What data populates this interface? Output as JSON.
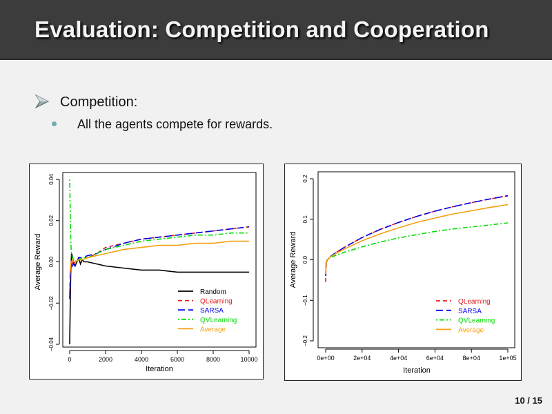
{
  "slide": {
    "title": "Evaluation: Competition and Cooperation",
    "bullet1": "Competition:",
    "bullet2": "All the agents compete for rewards.",
    "page": "10 / 15"
  },
  "chart_data": [
    {
      "type": "line",
      "xlabel": "Iteration",
      "ylabel": "Average Reward",
      "xlim": [
        0,
        10000
      ],
      "ylim": [
        -0.04,
        0.04
      ],
      "xticks": [
        "0",
        "2000",
        "4000",
        "6000",
        "8000",
        "10000"
      ],
      "yticks": [
        "−0.04",
        "−0.02",
        "0.00",
        "0.02",
        "0.04"
      ],
      "legend": "bottom-right",
      "grid": false,
      "series": [
        {
          "name": "Random",
          "color": "#000000",
          "dash": "solid",
          "x": [
            0,
            30,
            60,
            100,
            150,
            200,
            300,
            400,
            500,
            600,
            700,
            800,
            1000,
            1500,
            2000,
            3000,
            4000,
            5000,
            6000,
            7000,
            8000,
            9000,
            10000
          ],
          "y": [
            -0.04,
            -0.02,
            -0.005,
            0.004,
            0.003,
            0.0,
            -0.002,
            0.0,
            0.002,
            -0.001,
            0.001,
            0.0,
            0.0,
            -0.001,
            -0.002,
            -0.003,
            -0.004,
            -0.004,
            -0.005,
            -0.005,
            -0.005,
            -0.005,
            -0.005
          ]
        },
        {
          "name": "QLearning",
          "color": "#e41a1c",
          "dash": "dashed",
          "x": [
            0,
            30,
            60,
            100,
            150,
            200,
            300,
            400,
            500,
            700,
            1000,
            1500,
            2000,
            3000,
            4000,
            5000,
            6000,
            7000,
            8000,
            9000,
            10000
          ],
          "y": [
            -0.015,
            -0.008,
            -0.002,
            0.001,
            -0.001,
            -0.002,
            0.0,
            0.001,
            0.001,
            0.002,
            0.002,
            0.004,
            0.007,
            0.009,
            0.011,
            0.012,
            0.013,
            0.014,
            0.015,
            0.016,
            0.017
          ]
        },
        {
          "name": "SARSA",
          "color": "#0000ee",
          "dash": "longdash",
          "x": [
            0,
            30,
            60,
            100,
            150,
            200,
            300,
            400,
            500,
            700,
            1000,
            1500,
            2000,
            3000,
            4000,
            5000,
            6000,
            7000,
            8000,
            9000,
            10000
          ],
          "y": [
            -0.018,
            -0.01,
            -0.003,
            0.0,
            -0.002,
            -0.001,
            -0.002,
            0.0,
            0.002,
            0.002,
            0.003,
            0.004,
            0.006,
            0.009,
            0.011,
            0.012,
            0.013,
            0.014,
            0.015,
            0.016,
            0.017
          ]
        },
        {
          "name": "QVLearning",
          "color": "#00dd00",
          "dash": "dotdash",
          "x": [
            0,
            20,
            40,
            60,
            80,
            100,
            150,
            200,
            300,
            500,
            700,
            1000,
            1500,
            2000,
            3000,
            4000,
            5000,
            6000,
            7000,
            8000,
            9000,
            10000
          ],
          "y": [
            0.04,
            0.03,
            0.02,
            0.01,
            0.006,
            0.004,
            0.002,
            0.001,
            0.0,
            0.001,
            0.002,
            0.002,
            0.004,
            0.006,
            0.008,
            0.01,
            0.011,
            0.012,
            0.013,
            0.013,
            0.014,
            0.014
          ]
        },
        {
          "name": "Average",
          "color": "#f4a011",
          "dash": "solid",
          "x": [
            0,
            30,
            60,
            100,
            150,
            200,
            300,
            500,
            700,
            1000,
            1500,
            2000,
            3000,
            4000,
            5000,
            6000,
            7000,
            8000,
            9000,
            10000
          ],
          "y": [
            -0.008,
            -0.004,
            -0.001,
            0.0,
            0.001,
            0.0,
            0.0,
            0.001,
            0.001,
            0.002,
            0.003,
            0.004,
            0.006,
            0.007,
            0.008,
            0.008,
            0.009,
            0.009,
            0.01,
            0.01
          ]
        }
      ]
    },
    {
      "type": "line",
      "xlabel": "Iteration",
      "ylabel": "Average Reward",
      "xlim": [
        0,
        100000
      ],
      "ylim": [
        -0.2,
        0.2
      ],
      "xticks": [
        "0e+00",
        "2e+04",
        "4e+04",
        "6e+04",
        "8e+04",
        "1e+05"
      ],
      "yticks": [
        "−0.2",
        "−0.1",
        "0.0",
        "0.1",
        "0.2"
      ],
      "legend": "bottom-right",
      "grid": false,
      "series": [
        {
          "name": "QLearning",
          "color": "#e41a1c",
          "dash": "dashed",
          "x": [
            0,
            200,
            500,
            1000,
            2000,
            5000,
            10000,
            20000,
            30000,
            40000,
            50000,
            60000,
            70000,
            80000,
            90000,
            100000
          ],
          "y": [
            -0.055,
            -0.02,
            -0.005,
            0.0,
            0.006,
            0.016,
            0.03,
            0.055,
            0.075,
            0.092,
            0.107,
            0.12,
            0.131,
            0.141,
            0.15,
            0.158
          ]
        },
        {
          "name": "SARSA",
          "color": "#0000ee",
          "dash": "longdash",
          "x": [
            0,
            200,
            500,
            1000,
            2000,
            5000,
            10000,
            20000,
            30000,
            40000,
            50000,
            60000,
            70000,
            80000,
            90000,
            100000
          ],
          "y": [
            -0.04,
            -0.015,
            -0.004,
            0.0,
            0.006,
            0.016,
            0.03,
            0.055,
            0.075,
            0.092,
            0.107,
            0.12,
            0.131,
            0.141,
            0.15,
            0.158
          ]
        },
        {
          "name": "QVLearning",
          "color": "#00dd00",
          "dash": "dotdash",
          "x": [
            0,
            200,
            500,
            1000,
            2000,
            5000,
            10000,
            20000,
            30000,
            40000,
            50000,
            60000,
            70000,
            80000,
            90000,
            100000
          ],
          "y": [
            -0.02,
            -0.008,
            -0.002,
            0.0,
            0.004,
            0.01,
            0.018,
            0.032,
            0.044,
            0.054,
            0.062,
            0.07,
            0.076,
            0.081,
            0.086,
            0.091
          ]
        },
        {
          "name": "Average",
          "color": "#f4a011",
          "dash": "solid",
          "x": [
            0,
            200,
            500,
            1000,
            2000,
            5000,
            10000,
            20000,
            30000,
            40000,
            50000,
            60000,
            70000,
            80000,
            90000,
            100000
          ],
          "y": [
            -0.035,
            -0.012,
            -0.003,
            0.0,
            0.005,
            0.014,
            0.026,
            0.047,
            0.064,
            0.079,
            0.092,
            0.103,
            0.113,
            0.121,
            0.129,
            0.136
          ]
        }
      ]
    }
  ]
}
